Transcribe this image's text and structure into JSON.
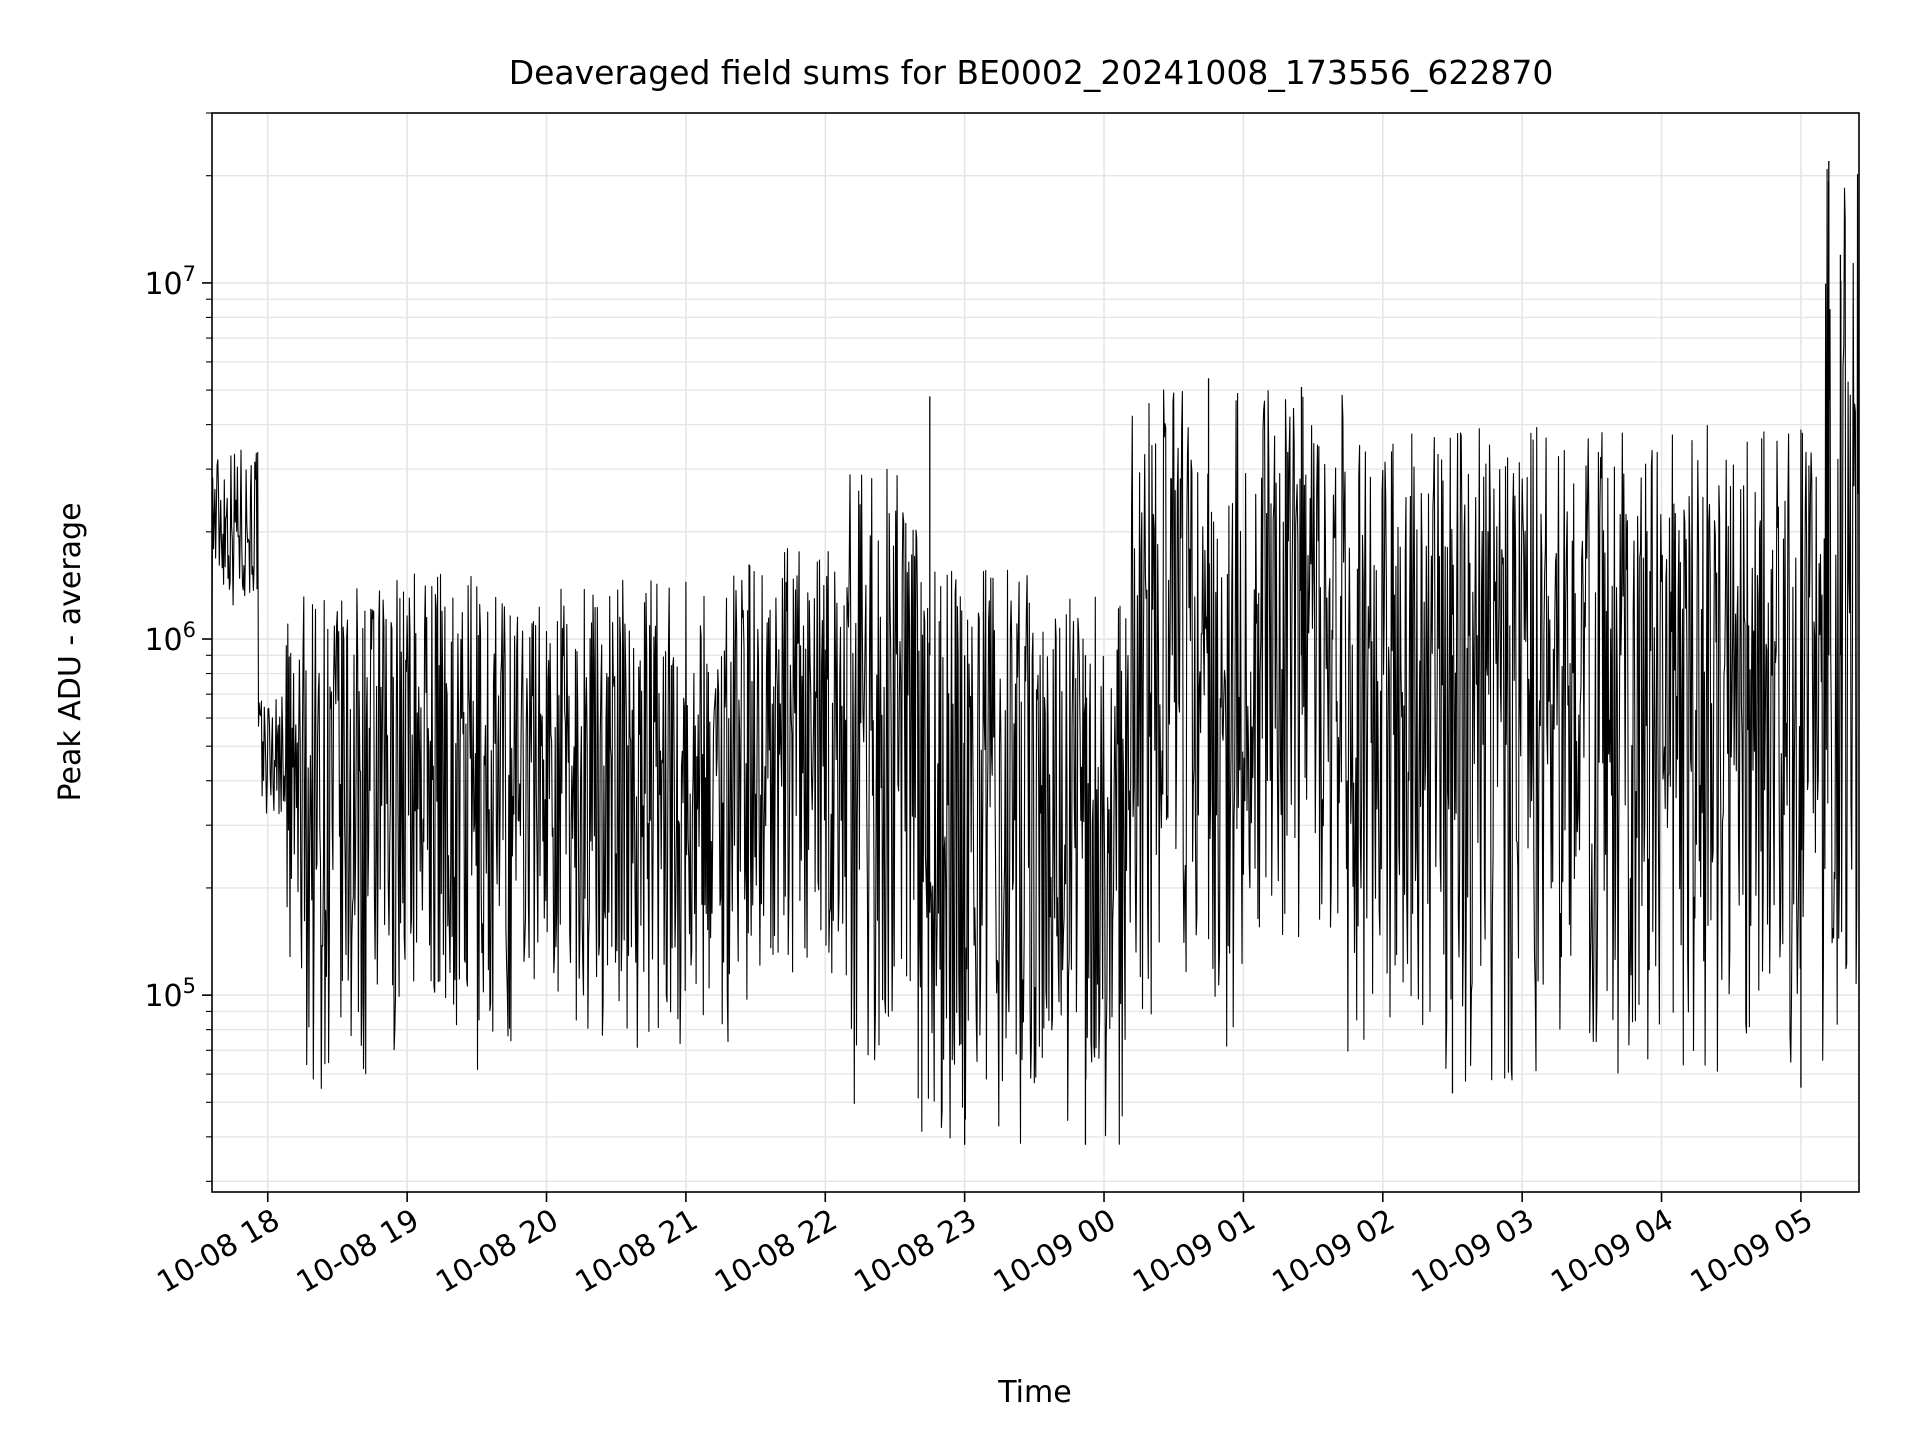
{
  "chart_data": {
    "type": "line",
    "title": "Deaveraged field sums for BE0002_20241008_173556_622870",
    "xlabel": "Time",
    "ylabel": "Peak ADU - average",
    "yscale": "log",
    "ylim": [
      28000,
      30000000
    ],
    "xlim": [
      "2024-10-08 17:36",
      "2024-10-09 05:25"
    ],
    "grid": true,
    "line_color": "#000000",
    "grid_color": "#e5e5e5",
    "x_tick_labels": [
      "10-08 18",
      "10-08 19",
      "10-08 20",
      "10-08 21",
      "10-08 22",
      "10-08 23",
      "10-09 00",
      "10-09 01",
      "10-09 02",
      "10-09 03",
      "10-09 04",
      "10-09 05"
    ],
    "x_tick_values": [
      "2024-10-08 18:00",
      "2024-10-08 19:00",
      "2024-10-08 20:00",
      "2024-10-08 21:00",
      "2024-10-08 22:00",
      "2024-10-08 23:00",
      "2024-10-09 00:00",
      "2024-10-09 01:00",
      "2024-10-09 02:00",
      "2024-10-09 03:00",
      "2024-10-09 04:00",
      "2024-10-09 05:00"
    ],
    "y_major_ticks": [
      {
        "value": 100000,
        "base": "10",
        "exp": "5"
      },
      {
        "value": 1000000,
        "base": "10",
        "exp": "6"
      },
      {
        "value": 10000000,
        "base": "10",
        "exp": "7"
      }
    ],
    "series": [
      {
        "values_note": "approximate envelope of a dense noisy time series; each segment lists [start time, end time, low, high] in ADU",
        "segments": [
          [
            "2024-10-08 17:36",
            "2024-10-08 17:56",
            1200000,
            3500000
          ],
          [
            "2024-10-08 17:56",
            "2024-10-08 18:08",
            300000,
            700000
          ],
          [
            "2024-10-08 18:08",
            "2024-10-08 18:55",
            50000,
            1400000
          ],
          [
            "2024-10-08 18:55",
            "2024-10-08 19:20",
            90000,
            1600000
          ],
          [
            "2024-10-08 19:20",
            "2024-10-08 19:45",
            50000,
            1500000
          ],
          [
            "2024-10-08 19:45",
            "2024-10-08 20:10",
            100000,
            1400000
          ],
          [
            "2024-10-08 20:10",
            "2024-10-08 21:20",
            70000,
            1500000
          ],
          [
            "2024-10-08 21:20",
            "2024-10-08 22:10",
            90000,
            1800000
          ],
          [
            "2024-10-08 22:10",
            "2024-10-08 22:40",
            45000,
            3000000
          ],
          [
            "2024-10-08 22:40",
            "2024-10-09 00:10",
            38000,
            1600000
          ],
          [
            "2024-10-09 00:10",
            "2024-10-09 01:00",
            70000,
            5000000
          ],
          [
            "2024-10-09 01:00",
            "2024-10-09 01:45",
            120000,
            5000000
          ],
          [
            "2024-10-09 01:45",
            "2024-10-09 03:00",
            55000,
            4000000
          ],
          [
            "2024-10-09 03:00",
            "2024-10-09 05:10",
            60000,
            4000000
          ],
          [
            "2024-10-09 05:10",
            "2024-10-09 05:25",
            80000,
            22000000
          ]
        ],
        "peaks": [
          [
            "2024-10-08 22:45",
            4800000
          ],
          [
            "2024-10-09 00:45",
            5400000
          ],
          [
            "2024-10-09 01:25",
            5100000
          ],
          [
            "2024-10-09 05:12",
            22000000
          ],
          [
            "2024-10-09 05:17",
            12000000
          ]
        ],
        "troughs": [
          [
            "2024-10-08 23:00",
            38000
          ],
          [
            "2024-10-08 23:52",
            38000
          ],
          [
            "2024-10-09 02:30",
            53000
          ],
          [
            "2024-10-09 05:00",
            55000
          ]
        ]
      }
    ]
  }
}
